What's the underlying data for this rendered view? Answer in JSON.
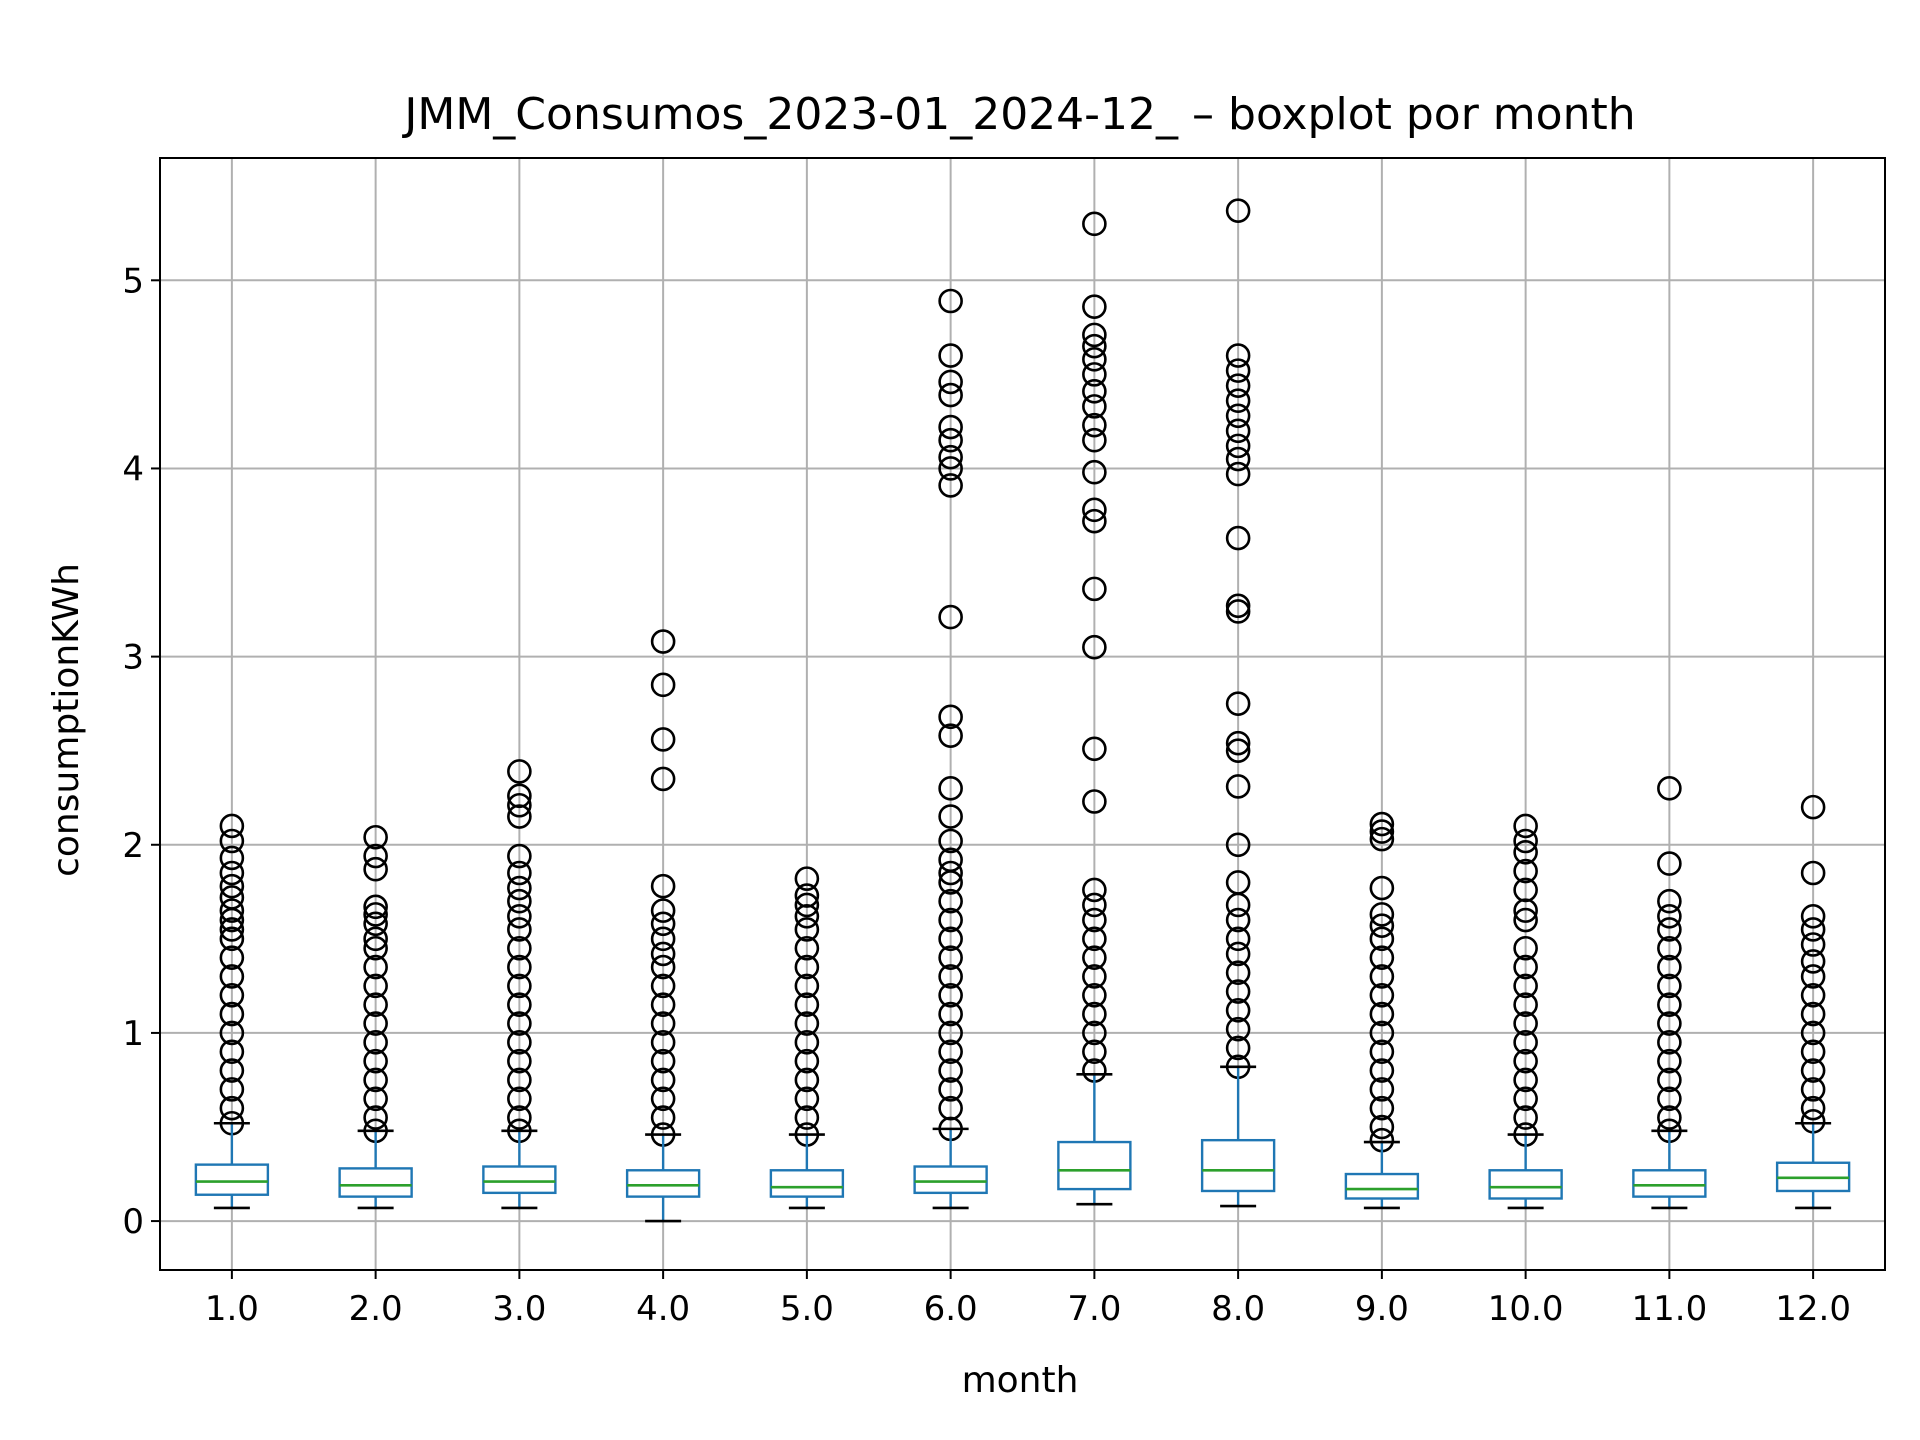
{
  "chart_data": {
    "type": "box",
    "title": "JMM_Consumos_2023-01_2024-12_ – boxplot por month",
    "xlabel": "month",
    "ylabel": "consumptionKWh",
    "ylim": [
      -0.26,
      5.65
    ],
    "yticks": [
      0,
      1,
      2,
      3,
      4,
      5
    ],
    "grid": true,
    "colors": {
      "box": "#1f77b4",
      "median": "#2ca02c",
      "whisker": "#1f77b4",
      "cap": "#000000",
      "flier": "#000000",
      "grid": "#b0b0b0"
    },
    "categories": [
      "1.0",
      "2.0",
      "3.0",
      "4.0",
      "5.0",
      "6.0",
      "7.0",
      "8.0",
      "9.0",
      "10.0",
      "11.0",
      "12.0"
    ],
    "boxes": [
      {
        "min": 0.07,
        "q1": 0.14,
        "median": 0.21,
        "q3": 0.3,
        "max": 0.52,
        "fliers": [
          0.52,
          0.6,
          0.7,
          0.8,
          0.9,
          1.0,
          1.1,
          1.2,
          1.3,
          1.4,
          1.5,
          1.55,
          1.6,
          1.65,
          1.72,
          1.78,
          1.85,
          1.93,
          2.02,
          2.1
        ]
      },
      {
        "min": 0.07,
        "q1": 0.13,
        "median": 0.19,
        "q3": 0.28,
        "max": 0.48,
        "fliers": [
          0.48,
          0.55,
          0.65,
          0.75,
          0.85,
          0.95,
          1.05,
          1.15,
          1.25,
          1.35,
          1.45,
          1.5,
          1.58,
          1.63,
          1.67,
          1.87,
          1.94,
          2.04
        ]
      },
      {
        "min": 0.07,
        "q1": 0.15,
        "median": 0.21,
        "q3": 0.29,
        "max": 0.48,
        "fliers": [
          0.48,
          0.55,
          0.65,
          0.75,
          0.85,
          0.95,
          1.05,
          1.15,
          1.25,
          1.35,
          1.45,
          1.55,
          1.62,
          1.7,
          1.77,
          1.85,
          1.94,
          2.15,
          2.21,
          2.26,
          2.39
        ]
      },
      {
        "min": 0.0,
        "q1": 0.13,
        "median": 0.19,
        "q3": 0.27,
        "max": 0.46,
        "fliers": [
          0.46,
          0.55,
          0.65,
          0.75,
          0.85,
          0.95,
          1.05,
          1.15,
          1.25,
          1.35,
          1.42,
          1.5,
          1.58,
          1.65,
          1.78,
          2.35,
          2.56,
          2.85,
          3.08
        ]
      },
      {
        "min": 0.07,
        "q1": 0.13,
        "median": 0.18,
        "q3": 0.27,
        "max": 0.46,
        "fliers": [
          0.46,
          0.55,
          0.65,
          0.75,
          0.85,
          0.95,
          1.05,
          1.15,
          1.25,
          1.35,
          1.45,
          1.55,
          1.62,
          1.68,
          1.73,
          1.82
        ]
      },
      {
        "min": 0.07,
        "q1": 0.15,
        "median": 0.21,
        "q3": 0.29,
        "max": 0.49,
        "fliers": [
          0.49,
          0.6,
          0.7,
          0.8,
          0.9,
          1.0,
          1.1,
          1.2,
          1.3,
          1.4,
          1.5,
          1.6,
          1.7,
          1.8,
          1.85,
          1.92,
          2.02,
          2.15,
          2.3,
          2.58,
          2.68,
          3.21,
          3.91,
          4.0,
          4.06,
          4.15,
          4.22,
          4.39,
          4.46,
          4.6,
          4.89
        ]
      },
      {
        "min": 0.09,
        "q1": 0.17,
        "median": 0.27,
        "q3": 0.42,
        "max": 0.78,
        "fliers": [
          0.8,
          0.9,
          1.0,
          1.1,
          1.2,
          1.3,
          1.4,
          1.5,
          1.6,
          1.68,
          1.76,
          2.23,
          2.51,
          3.05,
          3.36,
          3.72,
          3.78,
          3.98,
          4.15,
          4.23,
          4.33,
          4.41,
          4.5,
          4.58,
          4.65,
          4.71,
          4.86,
          5.3
        ]
      },
      {
        "min": 0.08,
        "q1": 0.16,
        "median": 0.27,
        "q3": 0.43,
        "max": 0.82,
        "fliers": [
          0.82,
          0.92,
          1.02,
          1.12,
          1.22,
          1.32,
          1.42,
          1.5,
          1.6,
          1.68,
          1.8,
          2.0,
          2.31,
          2.5,
          2.54,
          2.75,
          3.24,
          3.27,
          3.63,
          3.97,
          4.05,
          4.12,
          4.2,
          4.28,
          4.36,
          4.44,
          4.52,
          4.6,
          5.37
        ]
      },
      {
        "min": 0.07,
        "q1": 0.12,
        "median": 0.17,
        "q3": 0.25,
        "max": 0.42,
        "fliers": [
          0.43,
          0.5,
          0.6,
          0.7,
          0.8,
          0.9,
          1.0,
          1.1,
          1.2,
          1.3,
          1.4,
          1.5,
          1.57,
          1.63,
          1.77,
          2.03,
          2.07,
          2.11
        ]
      },
      {
        "min": 0.07,
        "q1": 0.12,
        "median": 0.18,
        "q3": 0.27,
        "max": 0.46,
        "fliers": [
          0.46,
          0.55,
          0.65,
          0.75,
          0.85,
          0.95,
          1.05,
          1.15,
          1.25,
          1.35,
          1.45,
          1.6,
          1.65,
          1.76,
          1.86,
          1.96,
          2.02,
          2.1
        ]
      },
      {
        "min": 0.07,
        "q1": 0.13,
        "median": 0.19,
        "q3": 0.27,
        "max": 0.48,
        "fliers": [
          0.48,
          0.55,
          0.65,
          0.75,
          0.85,
          0.95,
          1.05,
          1.15,
          1.25,
          1.35,
          1.45,
          1.55,
          1.62,
          1.7,
          1.9,
          2.3
        ]
      },
      {
        "min": 0.07,
        "q1": 0.16,
        "median": 0.23,
        "q3": 0.31,
        "max": 0.52,
        "fliers": [
          0.53,
          0.6,
          0.7,
          0.8,
          0.9,
          1.0,
          1.1,
          1.2,
          1.3,
          1.38,
          1.47,
          1.55,
          1.62,
          1.85,
          2.2
        ]
      }
    ]
  }
}
